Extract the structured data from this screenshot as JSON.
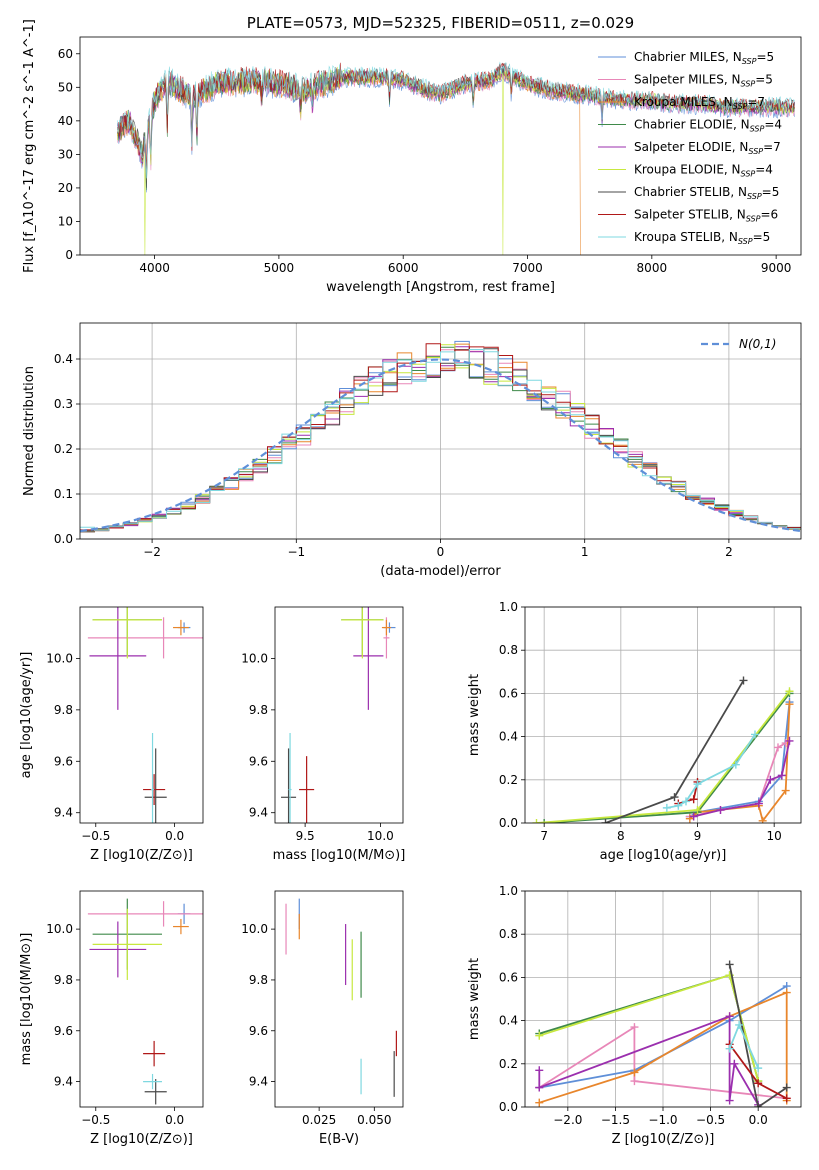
{
  "figure_title": "PLATE=0573, MJD=52325, FIBERID=0511, z=0.029",
  "colors": {
    "Chabrier MILES": "#5f8fd8",
    "Salpeter MILES": "#e887b8",
    "Kroupa MILES": "#e8862c",
    "Chabrier ELODIE": "#3f8a4a",
    "Salpeter ELODIE": "#9b2fae",
    "Kroupa ELODIE": "#c7e83f",
    "Chabrier STELIB": "#4a4a4a",
    "Salpeter STELIB": "#b01818",
    "Kroupa STELIB": "#7fd8e0"
  },
  "chart_data": [
    {
      "id": "spectrum",
      "type": "line",
      "title": "PLATE=0573, MJD=52325, FIBERID=0511, z=0.029",
      "xlabel": "wavelength [Angstrom, rest frame]",
      "ylabel": "Flux [f_λ10^-17 erg cm^-2 s^-1 A^-1]",
      "xlim": [
        3400,
        9200
      ],
      "ylim": [
        0,
        65
      ],
      "xticks": [
        4000,
        5000,
        6000,
        7000,
        8000,
        9000
      ],
      "yticks": [
        0,
        10,
        20,
        30,
        40,
        50,
        60
      ],
      "grid": false,
      "legend_position": "top-right",
      "legend": [
        {
          "model": "Chabrier MILES",
          "label": "Chabrier MILES, N",
          "sub": "SSP",
          "tail": "=5"
        },
        {
          "model": "Salpeter MILES",
          "label": "Salpeter MILES, N",
          "sub": "SSP",
          "tail": "=5"
        },
        {
          "model": "Kroupa MILES",
          "label": "Kroupa MILES, N",
          "sub": "SSP",
          "tail": "=7"
        },
        {
          "model": "Chabrier ELODIE",
          "label": "Chabrier ELODIE, N",
          "sub": "SSP",
          "tail": "=4"
        },
        {
          "model": "Salpeter ELODIE",
          "label": "Salpeter ELODIE, N",
          "sub": "SSP",
          "tail": "=7"
        },
        {
          "model": "Kroupa ELODIE",
          "label": "Kroupa ELODIE, N",
          "sub": "SSP",
          "tail": "=4"
        },
        {
          "model": "Chabrier STELIB",
          "label": "Chabrier STELIB, N",
          "sub": "SSP",
          "tail": "=5"
        },
        {
          "model": "Salpeter STELIB",
          "label": "Salpeter STELIB, N",
          "sub": "SSP",
          "tail": "=6"
        },
        {
          "model": "Kroupa STELIB",
          "label": "Kroupa STELIB, N",
          "sub": "SSP",
          "tail": "=5"
        }
      ],
      "approx_continuum": {
        "x": [
          3700,
          3800,
          3900,
          4000,
          4100,
          4300,
          4500,
          4800,
          5000,
          5200,
          5500,
          5800,
          6000,
          6200,
          6300,
          6500,
          6700,
          6800,
          7000,
          7200,
          7400,
          7600,
          7800,
          8000,
          8200,
          8400,
          8600,
          8800,
          9000,
          9150
        ],
        "y": [
          37,
          40,
          30,
          46,
          52,
          47,
          51,
          52,
          51,
          49,
          53,
          53,
          52,
          49,
          48,
          51,
          52,
          55,
          51,
          49,
          48,
          47,
          46,
          46,
          45,
          45,
          44,
          44,
          44,
          44
        ]
      },
      "features": [
        {
          "model": "Kroupa MILES",
          "drop_at": 7430
        },
        {
          "model": "Kroupa ELODIE",
          "drop_at": 6800
        },
        {
          "model": "Kroupa ELODIE",
          "drop_at": 3920
        }
      ]
    },
    {
      "id": "residuals",
      "type": "step-histogram",
      "xlabel": "(data-model)/error",
      "ylabel": "Normed distribution",
      "xlim": [
        -2.5,
        2.5
      ],
      "ylim": [
        0,
        0.48
      ],
      "xticks": [
        -2,
        -1,
        0,
        1,
        2
      ],
      "yticks": [
        0.0,
        0.1,
        0.2,
        0.3,
        0.4
      ],
      "grid": true,
      "legend_position": "top-right",
      "legend": [
        "N(0,1)"
      ],
      "reference_curve": {
        "name": "N(0,1)",
        "mean": 0,
        "sigma": 1,
        "color": "#5f8fd8",
        "style": "dashed"
      },
      "bin_edges_range": [
        -2.5,
        2.5
      ],
      "bin_width": 0.1
    },
    {
      "id": "age-vs-Z",
      "type": "errorbar",
      "xlabel": "Z [log10(Z/Z⊙)]",
      "ylabel": "age [log10(age/yr)]",
      "xlim": [
        -0.6,
        0.18
      ],
      "ylim": [
        9.36,
        10.2
      ],
      "xticks": [
        -0.5,
        0.0
      ],
      "yticks": [
        9.4,
        9.6,
        9.8,
        10.0
      ],
      "points": [
        {
          "model": "Chabrier MILES",
          "x": 0.06,
          "y": 10.12,
          "xerr": 0.04,
          "yerr": 0.02
        },
        {
          "model": "Salpeter MILES",
          "x": -0.07,
          "y": 10.08,
          "xerr": 0.48,
          "yerr": 0.08
        },
        {
          "model": "Kroupa MILES",
          "x": 0.04,
          "y": 10.12,
          "xerr": 0.05,
          "yerr": 0.03
        },
        {
          "model": "Chabrier ELODIE",
          "x": -0.3,
          "y": 10.15,
          "xerr": 0.22,
          "yerr": 0.14
        },
        {
          "model": "Salpeter ELODIE",
          "x": -0.36,
          "y": 10.01,
          "xerr": 0.18,
          "yerr": 0.21
        },
        {
          "model": "Kroupa ELODIE",
          "x": -0.3,
          "y": 10.15,
          "xerr": 0.22,
          "yerr": 0.15
        },
        {
          "model": "Chabrier STELIB",
          "x": -0.12,
          "y": 9.46,
          "xerr": 0.07,
          "yerr": 0.19
        },
        {
          "model": "Salpeter STELIB",
          "x": -0.13,
          "y": 9.49,
          "xerr": 0.07,
          "yerr": 0.06
        },
        {
          "model": "Kroupa STELIB",
          "x": -0.14,
          "y": 9.49,
          "xerr": 0.01,
          "yerr": 0.22
        }
      ]
    },
    {
      "id": "age-vs-mass",
      "type": "errorbar",
      "xlabel": "mass [log10(M/M⊙)]",
      "ylabel": "",
      "xlim": [
        9.3,
        10.15
      ],
      "ylim": [
        9.36,
        10.2
      ],
      "xticks": [
        9.5,
        10.0
      ],
      "yticks": [
        9.4,
        9.6,
        9.8,
        10.0
      ],
      "points": [
        {
          "model": "Chabrier MILES",
          "x": 10.06,
          "y": 10.12,
          "xerr": 0.04,
          "yerr": 0.02
        },
        {
          "model": "Salpeter MILES",
          "x": 10.04,
          "y": 10.08,
          "xerr": 0.02,
          "yerr": 0.08
        },
        {
          "model": "Kroupa MILES",
          "x": 10.04,
          "y": 10.12,
          "xerr": 0.03,
          "yerr": 0.03
        },
        {
          "model": "Chabrier ELODIE",
          "x": 9.88,
          "y": 10.15,
          "xerr": 0.14,
          "yerr": 0.14
        },
        {
          "model": "Salpeter ELODIE",
          "x": 9.92,
          "y": 10.01,
          "xerr": 0.1,
          "yerr": 0.21
        },
        {
          "model": "Kroupa ELODIE",
          "x": 9.88,
          "y": 10.15,
          "xerr": 0.14,
          "yerr": 0.15
        },
        {
          "model": "Chabrier STELIB",
          "x": 9.39,
          "y": 9.46,
          "xerr": 0.05,
          "yerr": 0.19
        },
        {
          "model": "Salpeter STELIB",
          "x": 9.51,
          "y": 9.49,
          "xerr": 0.05,
          "yerr": 0.13
        },
        {
          "model": "Kroupa STELIB",
          "x": 9.4,
          "y": 9.49,
          "xerr": 0.01,
          "yerr": 0.22
        }
      ]
    },
    {
      "id": "weight-vs-age",
      "type": "line",
      "xlabel": "age [log10(age/yr)]",
      "ylabel": "mass weight",
      "xlim": [
        6.75,
        10.35
      ],
      "ylim": [
        0,
        1.0
      ],
      "xticks": [
        7,
        8,
        9,
        10
      ],
      "yticks": [
        0.0,
        0.2,
        0.4,
        0.6,
        0.8,
        1.0
      ],
      "grid": true,
      "series": [
        {
          "model": "Chabrier MILES",
          "x": [
            8.9,
            9.0,
            9.8,
            10.1,
            10.2
          ],
          "y": [
            0.03,
            0.05,
            0.1,
            0.22,
            0.56
          ]
        },
        {
          "model": "Salpeter MILES",
          "x": [
            8.9,
            9.3,
            9.8,
            10.05,
            10.15
          ],
          "y": [
            0.03,
            0.06,
            0.09,
            0.35,
            0.37
          ]
        },
        {
          "model": "Kroupa MILES",
          "x": [
            8.9,
            9.0,
            9.8,
            9.85,
            10.15,
            10.2
          ],
          "y": [
            0.02,
            0.05,
            0.08,
            0.01,
            0.15,
            0.55
          ]
        },
        {
          "model": "Chabrier ELODIE",
          "x": [
            7.0,
            9.0,
            10.2
          ],
          "y": [
            0.0,
            0.05,
            0.6
          ]
        },
        {
          "model": "Salpeter ELODIE",
          "x": [
            8.95,
            9.3,
            9.8,
            9.95,
            10.1,
            10.2
          ],
          "y": [
            0.03,
            0.06,
            0.09,
            0.2,
            0.22,
            0.38
          ]
        },
        {
          "model": "Kroupa ELODIE",
          "x": [
            6.9,
            9.0,
            10.2
          ],
          "y": [
            0.0,
            0.06,
            0.61
          ]
        },
        {
          "model": "Chabrier STELIB",
          "x": [
            7.8,
            8.7,
            9.6
          ],
          "y": [
            0.0,
            0.12,
            0.66
          ]
        },
        {
          "model": "Salpeter STELIB",
          "x": [
            8.75,
            8.95,
            9.0
          ],
          "y": [
            0.09,
            0.11,
            0.19
          ]
        },
        {
          "model": "Kroupa STELIB",
          "x": [
            8.6,
            8.75,
            8.85,
            9.0,
            9.5,
            9.75
          ],
          "y": [
            0.07,
            0.08,
            0.1,
            0.18,
            0.27,
            0.41
          ]
        }
      ]
    },
    {
      "id": "mass-vs-Z",
      "type": "errorbar",
      "xlabel": "Z [log10(Z/Z⊙)]",
      "ylabel": "mass [log10(M/M⊙)]",
      "xlim": [
        -0.6,
        0.18
      ],
      "ylim": [
        9.3,
        10.15
      ],
      "xticks": [
        -0.5,
        0.0
      ],
      "yticks": [
        9.4,
        9.6,
        9.8,
        10.0
      ],
      "points": [
        {
          "model": "Chabrier MILES",
          "x": 0.06,
          "y": 10.06,
          "xerr": 0.04,
          "yerr": 0.04
        },
        {
          "model": "Salpeter MILES",
          "x": -0.07,
          "y": 10.06,
          "xerr": 0.48,
          "yerr": 0.05
        },
        {
          "model": "Kroupa MILES",
          "x": 0.04,
          "y": 10.01,
          "xerr": 0.05,
          "yerr": 0.03
        },
        {
          "model": "Chabrier ELODIE",
          "x": -0.3,
          "y": 9.98,
          "xerr": 0.22,
          "yerr": 0.14
        },
        {
          "model": "Salpeter ELODIE",
          "x": -0.36,
          "y": 9.92,
          "xerr": 0.18,
          "yerr": 0.11
        },
        {
          "model": "Kroupa ELODIE",
          "x": -0.3,
          "y": 9.94,
          "xerr": 0.22,
          "yerr": 0.14
        },
        {
          "model": "Chabrier STELIB",
          "x": -0.12,
          "y": 9.36,
          "xerr": 0.07,
          "yerr": 0.05
        },
        {
          "model": "Salpeter STELIB",
          "x": -0.13,
          "y": 9.51,
          "xerr": 0.07,
          "yerr": 0.05
        },
        {
          "model": "Kroupa STELIB",
          "x": -0.14,
          "y": 9.4,
          "xerr": 0.06,
          "yerr": 0.03
        }
      ]
    },
    {
      "id": "mass-vs-EBV",
      "type": "errorbar",
      "xlabel": "E(B-V)",
      "ylabel": "",
      "xlim": [
        0.005,
        0.063
      ],
      "ylim": [
        9.3,
        10.15
      ],
      "xticks": [
        0.025,
        0.05
      ],
      "xtick_labels": [
        "0.025",
        "0.050"
      ],
      "yticks": [
        9.4,
        9.6,
        9.8,
        10.0
      ],
      "points": [
        {
          "model": "Chabrier MILES",
          "x": 0.016,
          "y": 10.06,
          "xerr": 0,
          "yerr": 0.06
        },
        {
          "model": "Salpeter MILES",
          "x": 0.01,
          "y": 10.0,
          "xerr": 0,
          "yerr": 0.1
        },
        {
          "model": "Kroupa MILES",
          "x": 0.016,
          "y": 10.01,
          "xerr": 0,
          "yerr": 0.05
        },
        {
          "model": "Chabrier ELODIE",
          "x": 0.044,
          "y": 9.86,
          "xerr": 0,
          "yerr": 0.13
        },
        {
          "model": "Salpeter ELODIE",
          "x": 0.037,
          "y": 9.9,
          "xerr": 0,
          "yerr": 0.12
        },
        {
          "model": "Kroupa ELODIE",
          "x": 0.04,
          "y": 9.84,
          "xerr": 0,
          "yerr": 0.12
        },
        {
          "model": "Chabrier STELIB",
          "x": 0.059,
          "y": 9.43,
          "xerr": 0,
          "yerr": 0.09
        },
        {
          "model": "Salpeter STELIB",
          "x": 0.06,
          "y": 9.55,
          "xerr": 0,
          "yerr": 0.05
        },
        {
          "model": "Kroupa STELIB",
          "x": 0.044,
          "y": 9.42,
          "xerr": 0,
          "yerr": 0.07
        }
      ]
    },
    {
      "id": "weight-vs-Z",
      "type": "line",
      "xlabel": "Z [log10(Z/Z⊙)]",
      "ylabel": "mass weight",
      "xlim": [
        -2.45,
        0.45
      ],
      "ylim": [
        0,
        1.0
      ],
      "xticks": [
        -2.0,
        -1.5,
        -1.0,
        -0.5,
        0.0
      ],
      "yticks": [
        0.0,
        0.2,
        0.4,
        0.6,
        0.8,
        1.0
      ],
      "grid": true,
      "series": [
        {
          "model": "Chabrier MILES",
          "x": [
            -2.3,
            -1.3,
            -0.3,
            0.3
          ],
          "y": [
            0.09,
            0.17,
            0.4,
            0.56
          ]
        },
        {
          "model": "Salpeter MILES",
          "x": [
            -2.3,
            -1.3,
            -1.3,
            0.3
          ],
          "y": [
            0.09,
            0.37,
            0.12,
            0.04
          ]
        },
        {
          "model": "Kroupa MILES",
          "x": [
            -2.3,
            -1.3,
            -0.3,
            0.3,
            0.3
          ],
          "y": [
            0.02,
            0.16,
            0.42,
            0.53,
            0.03
          ]
        },
        {
          "model": "Chabrier ELODIE",
          "x": [
            -2.3,
            -0.3,
            0.0
          ],
          "y": [
            0.34,
            0.61,
            0.12
          ]
        },
        {
          "model": "Salpeter ELODIE",
          "x": [
            -2.3,
            -2.3,
            -0.3,
            -0.3,
            -0.25,
            0.0
          ],
          "y": [
            0.17,
            0.09,
            0.42,
            0.03,
            0.2,
            0.01
          ]
        },
        {
          "model": "Kroupa ELODIE",
          "x": [
            -2.3,
            -0.3,
            0.0
          ],
          "y": [
            0.33,
            0.61,
            0.12
          ]
        },
        {
          "model": "Chabrier STELIB",
          "x": [
            -0.3,
            0.0,
            0.3
          ],
          "y": [
            0.66,
            0.0,
            0.09
          ]
        },
        {
          "model": "Salpeter STELIB",
          "x": [
            -0.3,
            0.0,
            0.3
          ],
          "y": [
            0.29,
            0.11,
            0.04
          ]
        },
        {
          "model": "Kroupa STELIB",
          "x": [
            -0.3,
            -0.2,
            0.0
          ],
          "y": [
            0.27,
            0.38,
            0.18
          ]
        }
      ]
    }
  ]
}
